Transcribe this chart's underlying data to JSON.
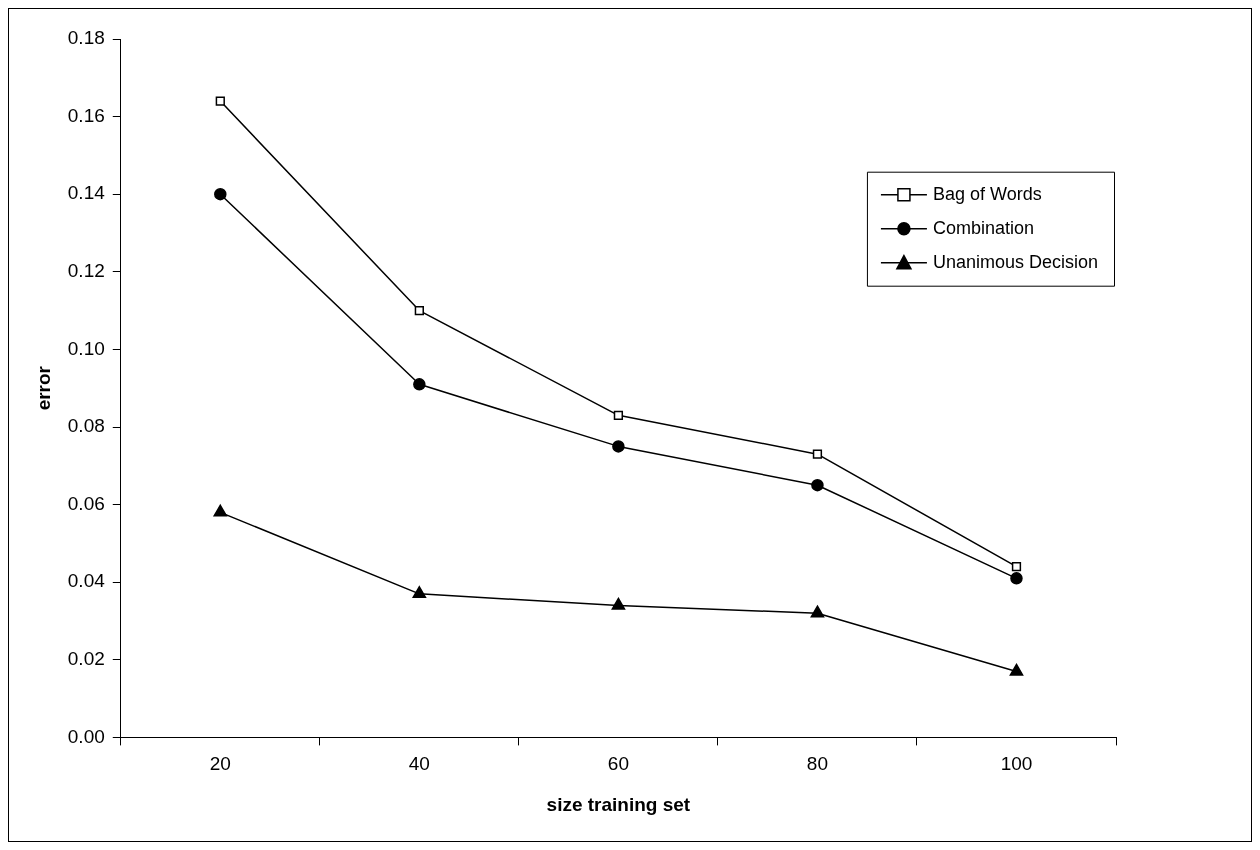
{
  "chart_data": {
    "type": "line",
    "xlabel": "size training set",
    "ylabel": "error",
    "categories": [
      "20",
      "40",
      "60",
      "80",
      "100"
    ],
    "series": [
      {
        "name": "Bag of Words",
        "color": "#000000",
        "marker": "square",
        "values": [
          0.164,
          0.11,
          0.083,
          0.073,
          0.044
        ]
      },
      {
        "name": "Combination",
        "color": "#000000",
        "marker": "circle",
        "values": [
          0.14,
          0.091,
          0.075,
          0.065,
          0.041
        ]
      },
      {
        "name": "Unanimous Decision",
        "color": "#000000",
        "marker": "triangle",
        "values": [
          0.058,
          0.037,
          0.034,
          0.032,
          0.017
        ]
      }
    ],
    "ylim": [
      0,
      0.18
    ],
    "yticks": [
      {
        "value": 0,
        "label": "0.00"
      },
      {
        "value": 0.02,
        "label": "0.02"
      },
      {
        "value": 0.04,
        "label": "0.04"
      },
      {
        "value": 0.06,
        "label": "0.06"
      },
      {
        "value": 0.08,
        "label": "0.08"
      },
      {
        "value": 0.1,
        "label": "0.10"
      },
      {
        "value": 0.12,
        "label": "0.12"
      },
      {
        "value": 0.14,
        "label": "0.14"
      },
      {
        "value": 0.16,
        "label": "0.16"
      },
      {
        "value": 0.18,
        "label": "0.18"
      }
    ],
    "grid": false,
    "legend": "top right",
    "line_style": "solid"
  }
}
